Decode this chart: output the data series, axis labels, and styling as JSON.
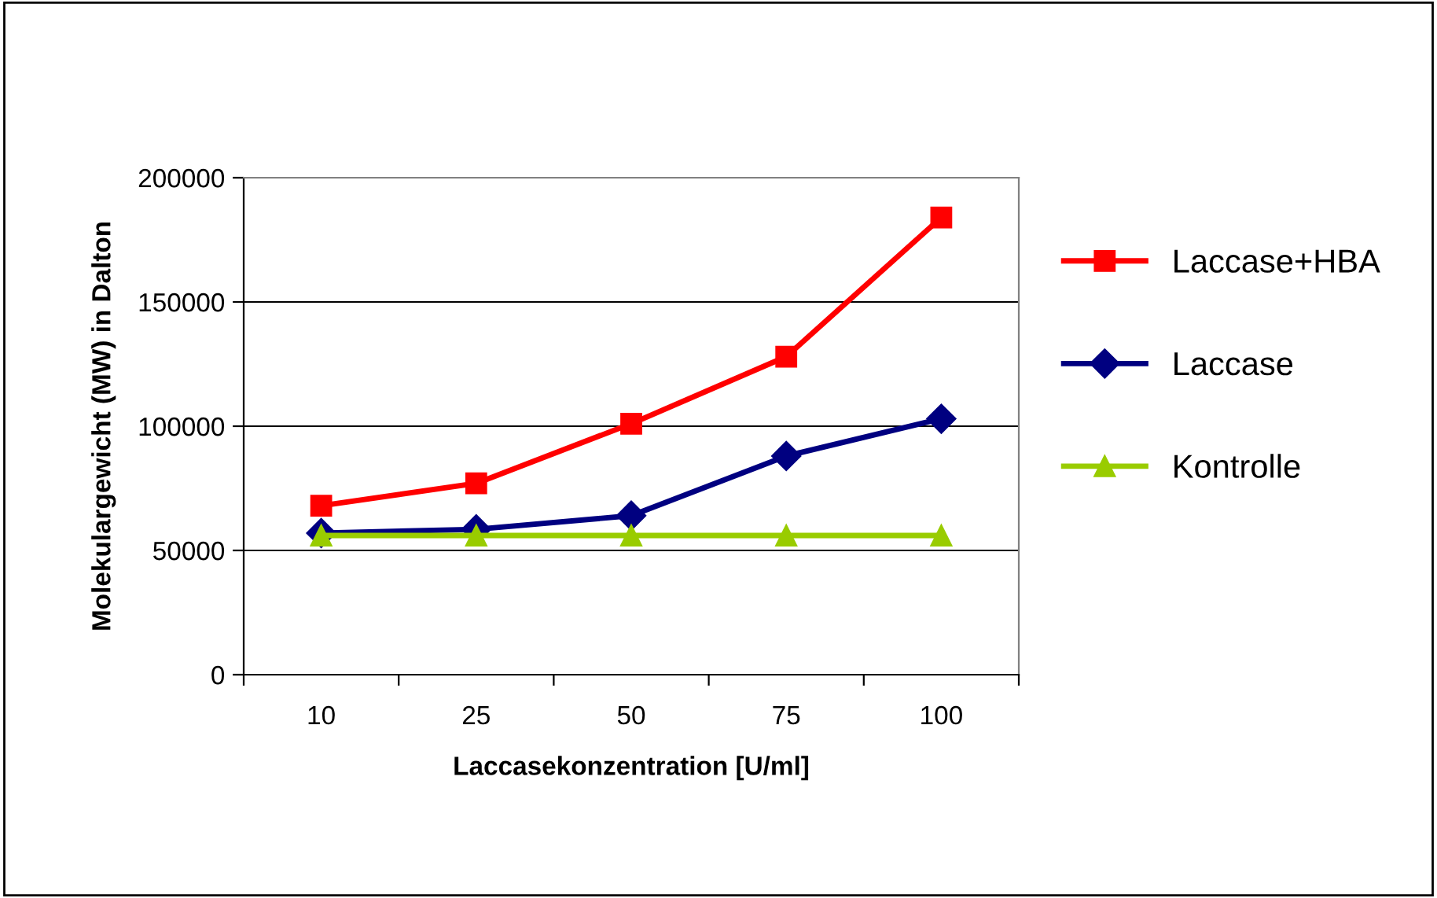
{
  "chart_data": {
    "type": "line",
    "xlabel": "Laccasekonzentration [U/ml]",
    "ylabel": "Molekulargewicht (MW) in Dalton",
    "categories": [
      "10",
      "25",
      "50",
      "75",
      "100"
    ],
    "series": [
      {
        "name": "Laccase+HBA",
        "color": "#ff0000",
        "marker": "square",
        "values": [
          68000,
          77000,
          101000,
          128000,
          184000
        ]
      },
      {
        "name": "Laccase",
        "color": "#000080",
        "marker": "diamond",
        "values": [
          57000,
          58500,
          64000,
          88000,
          103000
        ]
      },
      {
        "name": "Kontrolle",
        "color": "#99cc00",
        "marker": "triangle",
        "values": [
          56000,
          56000,
          56000,
          56000,
          56000
        ]
      }
    ],
    "ylim": [
      0,
      200000
    ],
    "yticks": [
      0,
      50000,
      100000,
      150000,
      200000
    ],
    "grid": "y",
    "legend": "right",
    "line_style": "solid"
  }
}
